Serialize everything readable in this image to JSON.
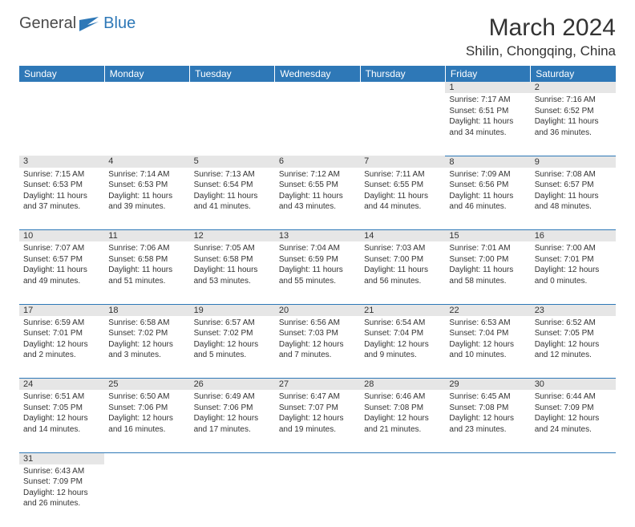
{
  "logo": {
    "text1": "General",
    "text2": "Blue"
  },
  "title": "March 2024",
  "location": "Shilin, Chongqing, China",
  "colors": {
    "headerBg": "#2e78b7",
    "headerText": "#ffffff",
    "dayNumBg": "#e6e6e6",
    "border": "#2e78b7"
  },
  "dayHeaders": [
    "Sunday",
    "Monday",
    "Tuesday",
    "Wednesday",
    "Thursday",
    "Friday",
    "Saturday"
  ],
  "weeks": [
    [
      null,
      null,
      null,
      null,
      null,
      {
        "n": "1",
        "sr": "7:17 AM",
        "ss": "6:51 PM",
        "dl": "11 hours and 34 minutes."
      },
      {
        "n": "2",
        "sr": "7:16 AM",
        "ss": "6:52 PM",
        "dl": "11 hours and 36 minutes."
      }
    ],
    [
      {
        "n": "3",
        "sr": "7:15 AM",
        "ss": "6:53 PM",
        "dl": "11 hours and 37 minutes."
      },
      {
        "n": "4",
        "sr": "7:14 AM",
        "ss": "6:53 PM",
        "dl": "11 hours and 39 minutes."
      },
      {
        "n": "5",
        "sr": "7:13 AM",
        "ss": "6:54 PM",
        "dl": "11 hours and 41 minutes."
      },
      {
        "n": "6",
        "sr": "7:12 AM",
        "ss": "6:55 PM",
        "dl": "11 hours and 43 minutes."
      },
      {
        "n": "7",
        "sr": "7:11 AM",
        "ss": "6:55 PM",
        "dl": "11 hours and 44 minutes."
      },
      {
        "n": "8",
        "sr": "7:09 AM",
        "ss": "6:56 PM",
        "dl": "11 hours and 46 minutes."
      },
      {
        "n": "9",
        "sr": "7:08 AM",
        "ss": "6:57 PM",
        "dl": "11 hours and 48 minutes."
      }
    ],
    [
      {
        "n": "10",
        "sr": "7:07 AM",
        "ss": "6:57 PM",
        "dl": "11 hours and 49 minutes."
      },
      {
        "n": "11",
        "sr": "7:06 AM",
        "ss": "6:58 PM",
        "dl": "11 hours and 51 minutes."
      },
      {
        "n": "12",
        "sr": "7:05 AM",
        "ss": "6:58 PM",
        "dl": "11 hours and 53 minutes."
      },
      {
        "n": "13",
        "sr": "7:04 AM",
        "ss": "6:59 PM",
        "dl": "11 hours and 55 minutes."
      },
      {
        "n": "14",
        "sr": "7:03 AM",
        "ss": "7:00 PM",
        "dl": "11 hours and 56 minutes."
      },
      {
        "n": "15",
        "sr": "7:01 AM",
        "ss": "7:00 PM",
        "dl": "11 hours and 58 minutes."
      },
      {
        "n": "16",
        "sr": "7:00 AM",
        "ss": "7:01 PM",
        "dl": "12 hours and 0 minutes."
      }
    ],
    [
      {
        "n": "17",
        "sr": "6:59 AM",
        "ss": "7:01 PM",
        "dl": "12 hours and 2 minutes."
      },
      {
        "n": "18",
        "sr": "6:58 AM",
        "ss": "7:02 PM",
        "dl": "12 hours and 3 minutes."
      },
      {
        "n": "19",
        "sr": "6:57 AM",
        "ss": "7:02 PM",
        "dl": "12 hours and 5 minutes."
      },
      {
        "n": "20",
        "sr": "6:56 AM",
        "ss": "7:03 PM",
        "dl": "12 hours and 7 minutes."
      },
      {
        "n": "21",
        "sr": "6:54 AM",
        "ss": "7:04 PM",
        "dl": "12 hours and 9 minutes."
      },
      {
        "n": "22",
        "sr": "6:53 AM",
        "ss": "7:04 PM",
        "dl": "12 hours and 10 minutes."
      },
      {
        "n": "23",
        "sr": "6:52 AM",
        "ss": "7:05 PM",
        "dl": "12 hours and 12 minutes."
      }
    ],
    [
      {
        "n": "24",
        "sr": "6:51 AM",
        "ss": "7:05 PM",
        "dl": "12 hours and 14 minutes."
      },
      {
        "n": "25",
        "sr": "6:50 AM",
        "ss": "7:06 PM",
        "dl": "12 hours and 16 minutes."
      },
      {
        "n": "26",
        "sr": "6:49 AM",
        "ss": "7:06 PM",
        "dl": "12 hours and 17 minutes."
      },
      {
        "n": "27",
        "sr": "6:47 AM",
        "ss": "7:07 PM",
        "dl": "12 hours and 19 minutes."
      },
      {
        "n": "28",
        "sr": "6:46 AM",
        "ss": "7:08 PM",
        "dl": "12 hours and 21 minutes."
      },
      {
        "n": "29",
        "sr": "6:45 AM",
        "ss": "7:08 PM",
        "dl": "12 hours and 23 minutes."
      },
      {
        "n": "30",
        "sr": "6:44 AM",
        "ss": "7:09 PM",
        "dl": "12 hours and 24 minutes."
      }
    ],
    [
      {
        "n": "31",
        "sr": "6:43 AM",
        "ss": "7:09 PM",
        "dl": "12 hours and 26 minutes."
      },
      null,
      null,
      null,
      null,
      null,
      null
    ]
  ],
  "labels": {
    "sunrise": "Sunrise: ",
    "sunset": "Sunset: ",
    "daylight": "Daylight: "
  }
}
